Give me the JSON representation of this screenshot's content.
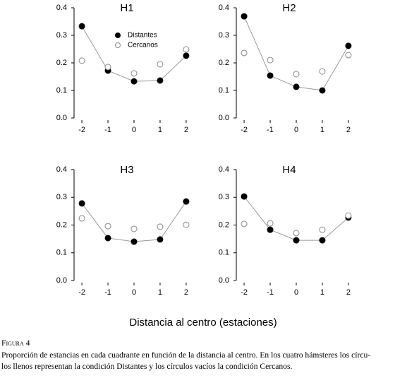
{
  "chart_data": [
    {
      "type": "scatter",
      "title": "H1",
      "x": [
        -2,
        -1,
        0,
        1,
        2
      ],
      "xlim": [
        -2.3,
        2.3
      ],
      "xticks": [
        -2,
        -1,
        0,
        1,
        2
      ],
      "ylim": [
        0,
        0.4
      ],
      "yticks": [
        {
          "value": 0,
          "label": "0.0"
        },
        0.1,
        0.2,
        0.3,
        0.4
      ],
      "legend": true,
      "series": [
        {
          "name": "Distantes",
          "color": "#000000",
          "marker": "filled",
          "line": true,
          "values": [
            0.333,
            0.172,
            0.133,
            0.136,
            0.226
          ]
        },
        {
          "name": "Cercanos",
          "color": "#888888",
          "marker": "open",
          "line": false,
          "values": [
            0.208,
            0.185,
            0.162,
            0.195,
            0.249
          ]
        }
      ]
    },
    {
      "type": "scatter",
      "title": "H2",
      "x": [
        -2,
        -1,
        0,
        1,
        2
      ],
      "xlim": [
        -2.3,
        2.3
      ],
      "xticks": [
        -2,
        -1,
        0,
        1,
        2
      ],
      "ylim": [
        0,
        0.4
      ],
      "yticks": [
        {
          "value": 0,
          "label": "0.0"
        },
        0.1,
        0.2,
        0.3,
        0.4
      ],
      "legend": false,
      "series": [
        {
          "name": "Distantes",
          "color": "#000000",
          "marker": "filled",
          "line": true,
          "values": [
            0.369,
            0.154,
            0.113,
            0.1,
            0.262
          ]
        },
        {
          "name": "Cercanos",
          "color": "#888888",
          "marker": "open",
          "line": false,
          "values": [
            0.236,
            0.21,
            0.159,
            0.169,
            0.228
          ]
        }
      ]
    },
    {
      "type": "scatter",
      "title": "H3",
      "x": [
        -2,
        -1,
        0,
        1,
        2
      ],
      "xlim": [
        -2.3,
        2.3
      ],
      "xticks": [
        -2,
        -1,
        0,
        1,
        2
      ],
      "ylim": [
        0,
        0.4
      ],
      "yticks": [
        {
          "value": 0,
          "label": "0.0"
        },
        0.1,
        0.2,
        0.3,
        0.4
      ],
      "legend": false,
      "series": [
        {
          "name": "Distantes",
          "color": "#000000",
          "marker": "filled",
          "line": true,
          "values": [
            0.278,
            0.153,
            0.14,
            0.148,
            0.285
          ]
        },
        {
          "name": "Cercanos",
          "color": "#888888",
          "marker": "open",
          "line": false,
          "values": [
            0.224,
            0.196,
            0.186,
            0.194,
            0.201
          ]
        }
      ]
    },
    {
      "type": "scatter",
      "title": "H4",
      "x": [
        -2,
        -1,
        0,
        1,
        2
      ],
      "xlim": [
        -2.3,
        2.3
      ],
      "xticks": [
        -2,
        -1,
        0,
        1,
        2
      ],
      "ylim": [
        0,
        0.4
      ],
      "yticks": [
        {
          "value": 0,
          "label": "0.0"
        },
        0.1,
        0.2,
        0.3,
        0.4
      ],
      "legend": false,
      "series": [
        {
          "name": "Distantes",
          "color": "#000000",
          "marker": "filled",
          "line": true,
          "values": [
            0.303,
            0.183,
            0.145,
            0.145,
            0.227
          ]
        },
        {
          "name": "Cercanos",
          "color": "#888888",
          "marker": "open",
          "line": false,
          "values": [
            0.204,
            0.206,
            0.171,
            0.183,
            0.234
          ]
        }
      ]
    }
  ],
  "figure": {
    "xlabel": "Distancia al centro (estaciones)",
    "caption_label": "Figura 4",
    "caption_lines": [
      "Proporción de estancias en cada cuadrante en función de la distancia al centro. En los cuatro hámsteres los círcu-",
      "los llenos representan la condición Distantes y los círculos vacíos la condición Cercanos."
    ]
  }
}
